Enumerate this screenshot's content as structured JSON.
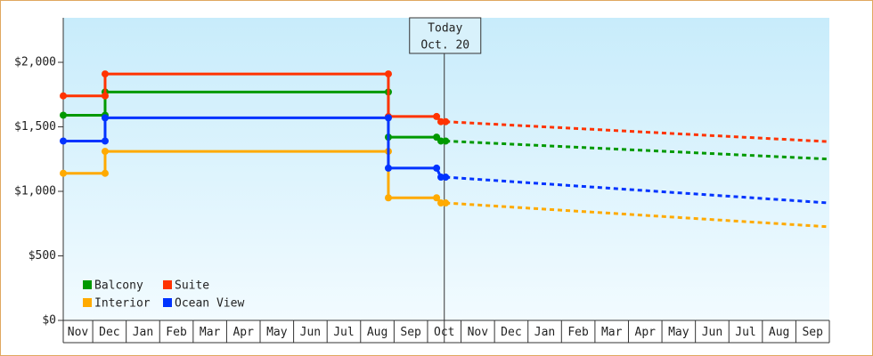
{
  "chart_data": {
    "type": "step-line",
    "xlim": [
      0.12,
      23
    ],
    "xticks": [
      {
        "value": 0.5,
        "label": "Nov"
      },
      {
        "value": 1.5,
        "label": "Dec"
      },
      {
        "value": 2.5,
        "label": "Jan"
      },
      {
        "value": 3.5,
        "label": "Feb"
      },
      {
        "value": 4.5,
        "label": "Mar"
      },
      {
        "value": 5.5,
        "label": "Apr"
      },
      {
        "value": 6.5,
        "label": "May"
      },
      {
        "value": 7.5,
        "label": "Jun"
      },
      {
        "value": 8.5,
        "label": "Jul"
      },
      {
        "value": 9.5,
        "label": "Aug"
      },
      {
        "value": 10.5,
        "label": "Sep"
      },
      {
        "value": 11.5,
        "label": "Oct"
      },
      {
        "value": 12.5,
        "label": "Nov"
      },
      {
        "value": 13.5,
        "label": "Dec"
      },
      {
        "value": 14.5,
        "label": "Jan"
      },
      {
        "value": 15.5,
        "label": "Feb"
      },
      {
        "value": 16.5,
        "label": "Mar"
      },
      {
        "value": 17.5,
        "label": "Apr"
      },
      {
        "value": 18.5,
        "label": "May"
      },
      {
        "value": 19.5,
        "label": "Jun"
      },
      {
        "value": 20.5,
        "label": "Jul"
      },
      {
        "value": 21.5,
        "label": "Aug"
      },
      {
        "value": 22.5,
        "label": "Sep"
      }
    ],
    "ylim": [
      0,
      2345
    ],
    "yticks": [
      {
        "value": 0,
        "label": "$0"
      },
      {
        "value": 500,
        "label": "$500"
      },
      {
        "value": 1000,
        "label": "$1,000"
      },
      {
        "value": 1500,
        "label": "$1,500"
      },
      {
        "value": 2000,
        "label": "$2,000"
      }
    ],
    "legend": "lower left",
    "annotation": {
      "text": [
        "Today",
        "Oct. 20"
      ],
      "x": 11.5
    },
    "series": [
      {
        "name": "Balcony",
        "color": "#009900",
        "x": [
          0.12,
          1.37,
          1.37,
          9.83,
          9.83,
          11.27,
          11.4
        ],
        "values": [
          1590,
          1590,
          1770,
          1770,
          1420,
          1420,
          1390
        ],
        "forecast": {
          "x": [
            11.54,
            23
          ],
          "values": [
            1390,
            1250
          ]
        }
      },
      {
        "name": "Suite",
        "color": "#ff3300",
        "x": [
          0.12,
          1.37,
          1.37,
          9.83,
          9.83,
          11.27,
          11.4
        ],
        "values": [
          1740,
          1740,
          1910,
          1910,
          1580,
          1580,
          1540
        ],
        "forecast": {
          "x": [
            11.54,
            23
          ],
          "values": [
            1540,
            1385
          ]
        }
      },
      {
        "name": "Interior",
        "color": "#ffaa00",
        "x": [
          0.12,
          1.37,
          1.37,
          9.83,
          9.83,
          11.27,
          11.4
        ],
        "values": [
          1140,
          1140,
          1310,
          1310,
          950,
          950,
          910
        ],
        "forecast": {
          "x": [
            11.54,
            23
          ],
          "values": [
            910,
            725
          ]
        }
      },
      {
        "name": "Ocean View",
        "color": "#0033ff",
        "x": [
          0.12,
          1.37,
          1.37,
          9.83,
          9.83,
          11.27,
          11.4
        ],
        "values": [
          1390,
          1390,
          1570,
          1570,
          1180,
          1180,
          1110
        ],
        "forecast": {
          "x": [
            11.54,
            23
          ],
          "values": [
            1110,
            910
          ]
        }
      }
    ]
  }
}
